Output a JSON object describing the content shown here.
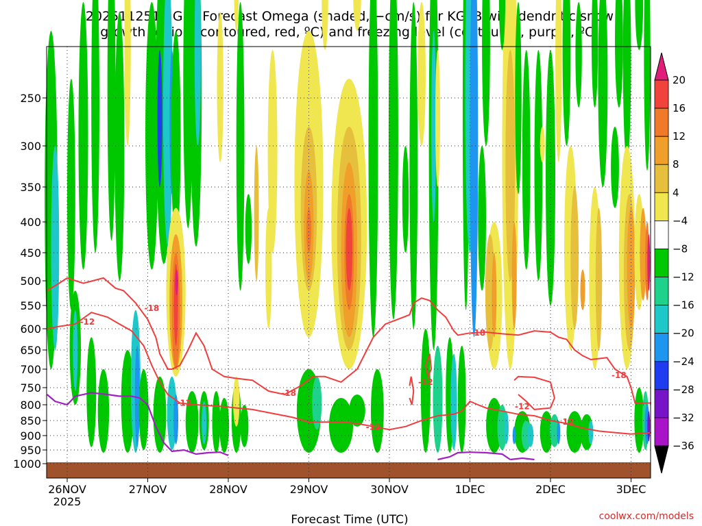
{
  "title_line1": "2025112518 GFS Forecast Omega (shaded, −cm/s) for KGTB with dendritic snow",
  "title_line2": "growth region (contoured, red, ºC) and freezing level (contoured, purple, ºC)",
  "xlabel": "Forecast Time (UTC)",
  "credit": "coolwx.com/models",
  "chart_data": {
    "type": "heatmap",
    "title": "2025112518 GFS Forecast Omega (shaded, −cm/s) for KGTB with dendritic snow growth region (contoured, red, ºC) and freezing level (contoured, purple, ºC)",
    "xlabel": "Forecast Time (UTC)",
    "ylabel": "",
    "x_ticks": [
      "26NOV",
      "27NOV",
      "28NOV",
      "29NOV",
      "30NOV",
      "1DEC",
      "2DEC",
      "3DEC"
    ],
    "x_tick_year": "2025",
    "x_range_days": [
      25.75,
      33.25
    ],
    "y_ticks": [
      250,
      300,
      350,
      400,
      450,
      500,
      550,
      600,
      650,
      700,
      750,
      800,
      850,
      900,
      950,
      1000
    ],
    "y_scale": "pressure (hPa), inverted",
    "y_range": [
      200,
      1000
    ],
    "grid": true,
    "colorbar_levels": [
      20,
      16,
      12,
      8,
      4,
      -4,
      -8,
      -12,
      -16,
      -20,
      -24,
      -28,
      -32,
      -36
    ],
    "colorbar_colors": [
      "#e01e7a",
      "#f0433c",
      "#f07a2a",
      "#f0a02a",
      "#e6c03c",
      "#f0e650",
      "#ffffff",
      "#00c800",
      "#1ed28c",
      "#1ec8c8",
      "#1e96f0",
      "#1e3cf0",
      "#7814c8",
      "#aa14c8",
      "#a0a0a0",
      "#000000"
    ],
    "contour_labels": [
      {
        "text": "-12",
        "value": -12
      },
      {
        "text": "-18",
        "value": -18
      }
    ],
    "contour_colors": {
      "dendritic": "#f03c3c",
      "freezing": "#a020c0"
    },
    "terrain_color": "#a0522d"
  }
}
